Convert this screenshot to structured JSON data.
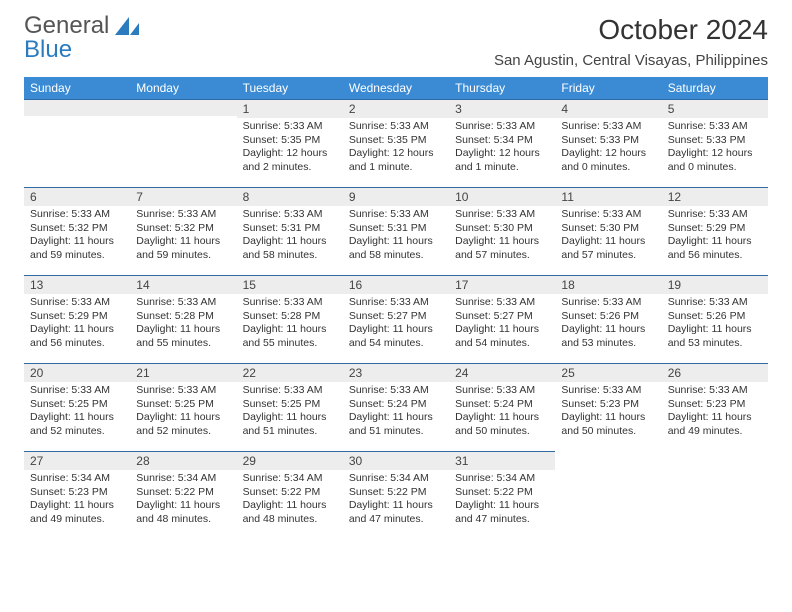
{
  "logo": {
    "word1": "General",
    "word2": "Blue"
  },
  "title": "October 2024",
  "location": "San Agustin, Central Visayas, Philippines",
  "header_color": "#3b8bd4",
  "divider_color": "#2f6aa3",
  "daynum_bg": "#ededed",
  "days": [
    "Sunday",
    "Monday",
    "Tuesday",
    "Wednesday",
    "Thursday",
    "Friday",
    "Saturday"
  ],
  "weeks": [
    [
      null,
      null,
      {
        "n": "1",
        "r": "5:33 AM",
        "s": "5:35 PM",
        "d": "12 hours and 2 minutes."
      },
      {
        "n": "2",
        "r": "5:33 AM",
        "s": "5:35 PM",
        "d": "12 hours and 1 minute."
      },
      {
        "n": "3",
        "r": "5:33 AM",
        "s": "5:34 PM",
        "d": "12 hours and 1 minute."
      },
      {
        "n": "4",
        "r": "5:33 AM",
        "s": "5:33 PM",
        "d": "12 hours and 0 minutes."
      },
      {
        "n": "5",
        "r": "5:33 AM",
        "s": "5:33 PM",
        "d": "12 hours and 0 minutes."
      }
    ],
    [
      {
        "n": "6",
        "r": "5:33 AM",
        "s": "5:32 PM",
        "d": "11 hours and 59 minutes."
      },
      {
        "n": "7",
        "r": "5:33 AM",
        "s": "5:32 PM",
        "d": "11 hours and 59 minutes."
      },
      {
        "n": "8",
        "r": "5:33 AM",
        "s": "5:31 PM",
        "d": "11 hours and 58 minutes."
      },
      {
        "n": "9",
        "r": "5:33 AM",
        "s": "5:31 PM",
        "d": "11 hours and 58 minutes."
      },
      {
        "n": "10",
        "r": "5:33 AM",
        "s": "5:30 PM",
        "d": "11 hours and 57 minutes."
      },
      {
        "n": "11",
        "r": "5:33 AM",
        "s": "5:30 PM",
        "d": "11 hours and 57 minutes."
      },
      {
        "n": "12",
        "r": "5:33 AM",
        "s": "5:29 PM",
        "d": "11 hours and 56 minutes."
      }
    ],
    [
      {
        "n": "13",
        "r": "5:33 AM",
        "s": "5:29 PM",
        "d": "11 hours and 56 minutes."
      },
      {
        "n": "14",
        "r": "5:33 AM",
        "s": "5:28 PM",
        "d": "11 hours and 55 minutes."
      },
      {
        "n": "15",
        "r": "5:33 AM",
        "s": "5:28 PM",
        "d": "11 hours and 55 minutes."
      },
      {
        "n": "16",
        "r": "5:33 AM",
        "s": "5:27 PM",
        "d": "11 hours and 54 minutes."
      },
      {
        "n": "17",
        "r": "5:33 AM",
        "s": "5:27 PM",
        "d": "11 hours and 54 minutes."
      },
      {
        "n": "18",
        "r": "5:33 AM",
        "s": "5:26 PM",
        "d": "11 hours and 53 minutes."
      },
      {
        "n": "19",
        "r": "5:33 AM",
        "s": "5:26 PM",
        "d": "11 hours and 53 minutes."
      }
    ],
    [
      {
        "n": "20",
        "r": "5:33 AM",
        "s": "5:25 PM",
        "d": "11 hours and 52 minutes."
      },
      {
        "n": "21",
        "r": "5:33 AM",
        "s": "5:25 PM",
        "d": "11 hours and 52 minutes."
      },
      {
        "n": "22",
        "r": "5:33 AM",
        "s": "5:25 PM",
        "d": "11 hours and 51 minutes."
      },
      {
        "n": "23",
        "r": "5:33 AM",
        "s": "5:24 PM",
        "d": "11 hours and 51 minutes."
      },
      {
        "n": "24",
        "r": "5:33 AM",
        "s": "5:24 PM",
        "d": "11 hours and 50 minutes."
      },
      {
        "n": "25",
        "r": "5:33 AM",
        "s": "5:23 PM",
        "d": "11 hours and 50 minutes."
      },
      {
        "n": "26",
        "r": "5:33 AM",
        "s": "5:23 PM",
        "d": "11 hours and 49 minutes."
      }
    ],
    [
      {
        "n": "27",
        "r": "5:34 AM",
        "s": "5:23 PM",
        "d": "11 hours and 49 minutes."
      },
      {
        "n": "28",
        "r": "5:34 AM",
        "s": "5:22 PM",
        "d": "11 hours and 48 minutes."
      },
      {
        "n": "29",
        "r": "5:34 AM",
        "s": "5:22 PM",
        "d": "11 hours and 48 minutes."
      },
      {
        "n": "30",
        "r": "5:34 AM",
        "s": "5:22 PM",
        "d": "11 hours and 47 minutes."
      },
      {
        "n": "31",
        "r": "5:34 AM",
        "s": "5:22 PM",
        "d": "11 hours and 47 minutes."
      },
      null,
      null
    ]
  ],
  "labels": {
    "sunrise": "Sunrise: ",
    "sunset": "Sunset: ",
    "daylight": "Daylight: "
  }
}
